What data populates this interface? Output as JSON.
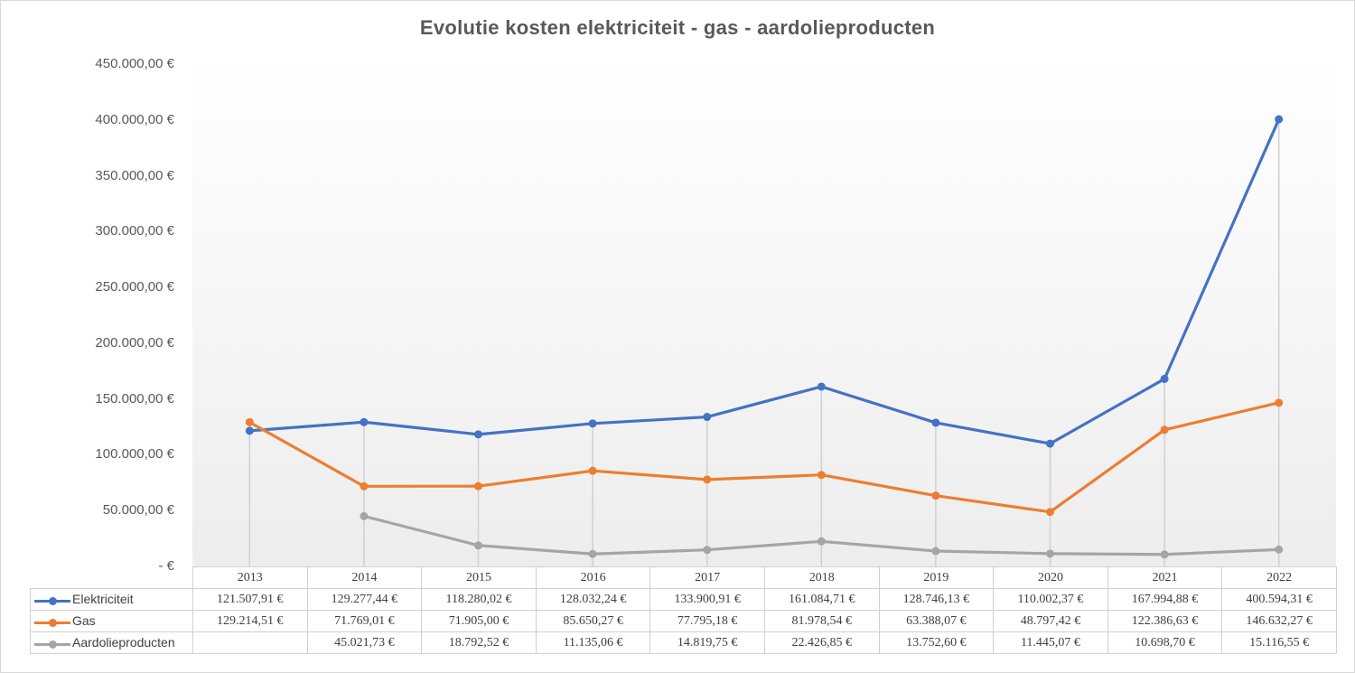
{
  "chart_data": {
    "type": "line",
    "title": "Evolutie kosten elektriciteit  - gas - aardolieproducten",
    "categories": [
      "2013",
      "2014",
      "2015",
      "2016",
      "2017",
      "2018",
      "2019",
      "2020",
      "2021",
      "2022"
    ],
    "ylim": [
      0,
      450000
    ],
    "yticks": [
      0,
      50000,
      100000,
      150000,
      200000,
      250000,
      300000,
      350000,
      400000,
      450000
    ],
    "ytick_labels": [
      "-  €",
      "50.000,00 €",
      "100.000,00 €",
      "150.000,00 €",
      "200.000,00 €",
      "250.000,00 €",
      "300.000,00 €",
      "350.000,00 €",
      "400.000,00 €",
      "450.000,00 €"
    ],
    "grid": "vertical drop lines",
    "legend": "data table",
    "series": [
      {
        "name": "Elektriciteit",
        "color": "#4472c4",
        "values": [
          121507.91,
          129277.44,
          118280.02,
          128032.24,
          133900.91,
          161084.71,
          128746.13,
          110002.37,
          167994.88,
          400594.31
        ],
        "labels": [
          "121.507,91 €",
          "129.277,44 €",
          "118.280,02 €",
          "128.032,24 €",
          "133.900,91 €",
          "161.084,71 €",
          "128.746,13 €",
          "110.002,37 €",
          "167.994,88 €",
          "400.594,31 €"
        ]
      },
      {
        "name": "Gas",
        "color": "#ed7d31",
        "values": [
          129214.51,
          71769.01,
          71905.0,
          85650.27,
          77795.18,
          81978.54,
          63388.07,
          48797.42,
          122386.63,
          146632.27
        ],
        "labels": [
          "129.214,51 €",
          "71.769,01 €",
          "71.905,00 €",
          "85.650,27 €",
          "77.795,18 €",
          "81.978,54 €",
          "63.388,07 €",
          "48.797,42 €",
          "122.386,63 €",
          "146.632,27 €"
        ]
      },
      {
        "name": "Aardolieproducten",
        "color": "#a5a5a5",
        "values": [
          null,
          45021.73,
          18792.52,
          11135.06,
          14819.75,
          22426.85,
          13752.6,
          11445.07,
          10698.7,
          15116.55
        ],
        "labels": [
          "",
          "45.021,73 €",
          "18.792,52 €",
          "11.135,06 €",
          "14.819,75 €",
          "22.426,85 €",
          "13.752,60 €",
          "11.445,07 €",
          "10.698,70 €",
          "15.116,55 €"
        ]
      }
    ]
  }
}
